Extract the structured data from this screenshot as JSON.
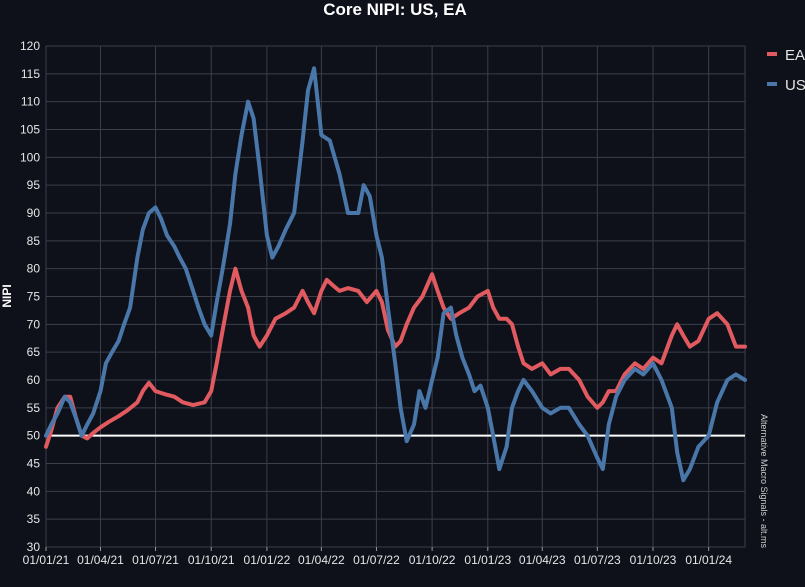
{
  "chart_data": {
    "type": "line",
    "title": "Core NIPI: US, EA",
    "ylabel": "NIPI",
    "xlabel": "",
    "ylim": [
      30,
      120
    ],
    "yticks": [
      30,
      35,
      40,
      45,
      50,
      55,
      60,
      65,
      70,
      75,
      80,
      85,
      90,
      95,
      100,
      105,
      110,
      115,
      120
    ],
    "x_start": "2021-01-01",
    "x_end": "2024-03-01",
    "xticks": [
      "2021-01-01",
      "2021-04-01",
      "2021-07-01",
      "2021-10-01",
      "2022-01-01",
      "2022-04-01",
      "2022-07-01",
      "2022-10-01",
      "2023-01-01",
      "2023-04-01",
      "2023-07-01",
      "2023-10-01",
      "2024-01-01"
    ],
    "xtick_labels": [
      "01/01/21",
      "01/04/21",
      "01/07/21",
      "01/10/21",
      "01/01/22",
      "01/04/22",
      "01/07/22",
      "01/10/22",
      "01/01/23",
      "01/04/23",
      "01/07/23",
      "01/10/23",
      "01/01/24"
    ],
    "reference_line": 50,
    "grid": true,
    "legend_position": "top-right",
    "series": [
      {
        "name": "EA",
        "color": "#e05a5f",
        "points": [
          [
            "2021-01-01",
            48
          ],
          [
            "2021-01-10",
            51
          ],
          [
            "2021-01-20",
            55
          ],
          [
            "2021-02-01",
            57
          ],
          [
            "2021-02-10",
            57
          ],
          [
            "2021-02-20",
            53
          ],
          [
            "2021-03-01",
            50
          ],
          [
            "2021-03-10",
            49.5
          ],
          [
            "2021-03-20",
            50.5
          ],
          [
            "2021-04-01",
            51.5
          ],
          [
            "2021-04-15",
            52.5
          ],
          [
            "2021-05-01",
            53.5
          ],
          [
            "2021-05-15",
            54.5
          ],
          [
            "2021-06-01",
            56
          ],
          [
            "2021-06-10",
            58
          ],
          [
            "2021-06-20",
            59.5
          ],
          [
            "2021-07-01",
            58
          ],
          [
            "2021-07-15",
            57.5
          ],
          [
            "2021-08-01",
            57
          ],
          [
            "2021-08-15",
            56
          ],
          [
            "2021-09-01",
            55.5
          ],
          [
            "2021-09-20",
            56
          ],
          [
            "2021-10-01",
            58
          ],
          [
            "2021-10-10",
            63
          ],
          [
            "2021-10-20",
            69
          ],
          [
            "2021-11-01",
            76
          ],
          [
            "2021-11-10",
            80
          ],
          [
            "2021-11-20",
            76
          ],
          [
            "2021-12-01",
            73
          ],
          [
            "2021-12-10",
            68
          ],
          [
            "2021-12-20",
            66
          ],
          [
            "2022-01-01",
            68
          ],
          [
            "2022-01-15",
            71
          ],
          [
            "2022-02-01",
            72
          ],
          [
            "2022-02-15",
            73
          ],
          [
            "2022-03-01",
            76
          ],
          [
            "2022-03-10",
            74
          ],
          [
            "2022-03-20",
            72
          ],
          [
            "2022-04-01",
            76
          ],
          [
            "2022-04-10",
            78
          ],
          [
            "2022-04-20",
            77
          ],
          [
            "2022-05-01",
            76
          ],
          [
            "2022-05-15",
            76.5
          ],
          [
            "2022-06-01",
            76
          ],
          [
            "2022-06-15",
            74
          ],
          [
            "2022-07-01",
            76
          ],
          [
            "2022-07-10",
            74
          ],
          [
            "2022-07-20",
            69
          ],
          [
            "2022-08-01",
            66
          ],
          [
            "2022-08-10",
            67
          ],
          [
            "2022-08-20",
            70
          ],
          [
            "2022-09-01",
            73
          ],
          [
            "2022-09-15",
            75
          ],
          [
            "2022-10-01",
            79
          ],
          [
            "2022-10-10",
            76
          ],
          [
            "2022-10-20",
            73
          ],
          [
            "2022-11-01",
            71
          ],
          [
            "2022-11-15",
            72
          ],
          [
            "2022-12-01",
            73
          ],
          [
            "2022-12-15",
            75
          ],
          [
            "2023-01-01",
            76
          ],
          [
            "2023-01-10",
            73
          ],
          [
            "2023-01-20",
            71
          ],
          [
            "2023-02-01",
            71
          ],
          [
            "2023-02-10",
            70
          ],
          [
            "2023-02-20",
            66
          ],
          [
            "2023-03-01",
            63
          ],
          [
            "2023-03-15",
            62
          ],
          [
            "2023-04-01",
            63
          ],
          [
            "2023-04-15",
            61
          ],
          [
            "2023-05-01",
            62
          ],
          [
            "2023-05-15",
            62
          ],
          [
            "2023-06-01",
            60
          ],
          [
            "2023-06-15",
            57
          ],
          [
            "2023-07-01",
            55
          ],
          [
            "2023-07-10",
            56
          ],
          [
            "2023-07-20",
            58
          ],
          [
            "2023-08-01",
            58
          ],
          [
            "2023-08-15",
            61
          ],
          [
            "2023-09-01",
            63
          ],
          [
            "2023-09-15",
            62
          ],
          [
            "2023-10-01",
            64
          ],
          [
            "2023-10-15",
            63
          ],
          [
            "2023-11-01",
            68
          ],
          [
            "2023-11-10",
            70
          ],
          [
            "2023-11-20",
            68
          ],
          [
            "2023-12-01",
            66
          ],
          [
            "2023-12-15",
            67
          ],
          [
            "2024-01-01",
            71
          ],
          [
            "2024-01-15",
            72
          ],
          [
            "2024-02-01",
            70
          ],
          [
            "2024-02-15",
            66
          ],
          [
            "2024-03-01",
            66
          ]
        ]
      },
      {
        "name": "US",
        "color": "#4a77aa",
        "points": [
          [
            "2021-01-01",
            50
          ],
          [
            "2021-01-10",
            52
          ],
          [
            "2021-01-20",
            54
          ],
          [
            "2021-02-01",
            57
          ],
          [
            "2021-02-10",
            56
          ],
          [
            "2021-02-20",
            53
          ],
          [
            "2021-03-01",
            50
          ],
          [
            "2021-03-10",
            52
          ],
          [
            "2021-03-20",
            54
          ],
          [
            "2021-04-01",
            58
          ],
          [
            "2021-04-10",
            63
          ],
          [
            "2021-04-20",
            65
          ],
          [
            "2021-05-01",
            67
          ],
          [
            "2021-05-10",
            70
          ],
          [
            "2021-05-20",
            73
          ],
          [
            "2021-06-01",
            82
          ],
          [
            "2021-06-10",
            87
          ],
          [
            "2021-06-20",
            90
          ],
          [
            "2021-07-01",
            91
          ],
          [
            "2021-07-10",
            89
          ],
          [
            "2021-07-20",
            86
          ],
          [
            "2021-08-01",
            84
          ],
          [
            "2021-08-10",
            82
          ],
          [
            "2021-08-20",
            80
          ],
          [
            "2021-09-01",
            76
          ],
          [
            "2021-09-10",
            73
          ],
          [
            "2021-09-20",
            70
          ],
          [
            "2021-10-01",
            68
          ],
          [
            "2021-10-10",
            74
          ],
          [
            "2021-10-20",
            80
          ],
          [
            "2021-11-01",
            88
          ],
          [
            "2021-11-10",
            97
          ],
          [
            "2021-11-20",
            104
          ],
          [
            "2021-12-01",
            110
          ],
          [
            "2021-12-10",
            107
          ],
          [
            "2021-12-20",
            98
          ],
          [
            "2022-01-01",
            86
          ],
          [
            "2022-01-10",
            82
          ],
          [
            "2022-01-20",
            84
          ],
          [
            "2022-02-01",
            87
          ],
          [
            "2022-02-15",
            90
          ],
          [
            "2022-03-01",
            103
          ],
          [
            "2022-03-10",
            112
          ],
          [
            "2022-03-20",
            116
          ],
          [
            "2022-04-01",
            104
          ],
          [
            "2022-04-15",
            103
          ],
          [
            "2022-05-01",
            97
          ],
          [
            "2022-05-15",
            90
          ],
          [
            "2022-06-01",
            90
          ],
          [
            "2022-06-10",
            95
          ],
          [
            "2022-06-20",
            93
          ],
          [
            "2022-07-01",
            86
          ],
          [
            "2022-07-10",
            82
          ],
          [
            "2022-07-20",
            73
          ],
          [
            "2022-08-01",
            63
          ],
          [
            "2022-08-10",
            55
          ],
          [
            "2022-08-20",
            49
          ],
          [
            "2022-09-01",
            52
          ],
          [
            "2022-09-10",
            58
          ],
          [
            "2022-09-20",
            55
          ],
          [
            "2022-10-01",
            60
          ],
          [
            "2022-10-10",
            64
          ],
          [
            "2022-10-20",
            72
          ],
          [
            "2022-11-01",
            73
          ],
          [
            "2022-11-10",
            68
          ],
          [
            "2022-11-20",
            64
          ],
          [
            "2022-12-01",
            61
          ],
          [
            "2022-12-10",
            58
          ],
          [
            "2022-12-20",
            59
          ],
          [
            "2023-01-01",
            55
          ],
          [
            "2023-01-10",
            50
          ],
          [
            "2023-01-20",
            44
          ],
          [
            "2023-02-01",
            48
          ],
          [
            "2023-02-10",
            55
          ],
          [
            "2023-02-20",
            58
          ],
          [
            "2023-03-01",
            60
          ],
          [
            "2023-03-15",
            58
          ],
          [
            "2023-04-01",
            55
          ],
          [
            "2023-04-15",
            54
          ],
          [
            "2023-05-01",
            55
          ],
          [
            "2023-05-15",
            55
          ],
          [
            "2023-06-01",
            52
          ],
          [
            "2023-06-15",
            50
          ],
          [
            "2023-07-01",
            46
          ],
          [
            "2023-07-10",
            44
          ],
          [
            "2023-07-20",
            52
          ],
          [
            "2023-08-01",
            57
          ],
          [
            "2023-08-15",
            60
          ],
          [
            "2023-09-01",
            62
          ],
          [
            "2023-09-15",
            61
          ],
          [
            "2023-10-01",
            63
          ],
          [
            "2023-10-15",
            60
          ],
          [
            "2023-11-01",
            55
          ],
          [
            "2023-11-10",
            47
          ],
          [
            "2023-11-20",
            42
          ],
          [
            "2023-12-01",
            44
          ],
          [
            "2023-12-15",
            48
          ],
          [
            "2024-01-01",
            50
          ],
          [
            "2024-01-15",
            56
          ],
          [
            "2024-02-01",
            60
          ],
          [
            "2024-02-15",
            61
          ],
          [
            "2024-03-01",
            60
          ]
        ]
      }
    ],
    "watermark": "Alternative Macro Signals - alt.ms"
  }
}
